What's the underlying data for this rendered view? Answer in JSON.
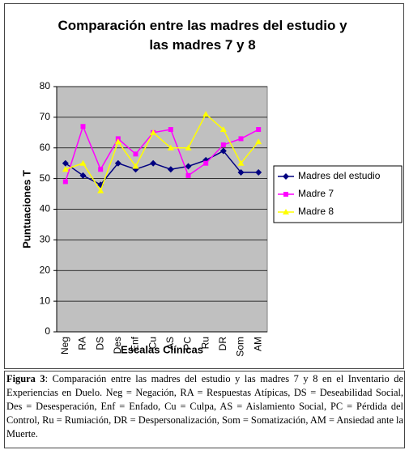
{
  "chart_data": {
    "type": "line",
    "title": "Comparación entre las madres del estudio y las madres 7 y 8",
    "x_label": "Escalas Clínicas",
    "y_label": "Puntuaciones T",
    "categories": [
      "Neg",
      "RA",
      "DS",
      "Des",
      "Enf",
      "Cu",
      "AS",
      "PC",
      "Ru",
      "DR",
      "Som",
      "AM"
    ],
    "series": [
      {
        "name": "Madres del estudio",
        "color": "#000080",
        "marker": "diamond",
        "values": [
          55,
          51,
          48,
          55,
          53,
          55,
          53,
          54,
          56,
          59,
          52,
          52
        ]
      },
      {
        "name": "Madre 7",
        "color": "#ff00ff",
        "marker": "square",
        "values": [
          49,
          67,
          53,
          63,
          58,
          65,
          66,
          51,
          55,
          61,
          63,
          66
        ]
      },
      {
        "name": "Madre 8",
        "color": "#ffff00",
        "marker": "triangle",
        "values": [
          53,
          55,
          46,
          62,
          54,
          65,
          60,
          60,
          71,
          66,
          55,
          62
        ]
      }
    ],
    "ylim": [
      0,
      80
    ],
    "yticks": [
      0,
      10,
      20,
      30,
      40,
      50,
      60,
      70,
      80
    ],
    "grid": true,
    "legend": "right"
  },
  "caption": {
    "label": "Figura 3",
    "text": ": Comparación entre las madres del estudio y las madres 7 y 8 en el Inventario de Experiencias en Duelo.    Neg = Negación, RA = Respuestas Atípicas, DS = Deseabilidad Social, Des = Desesperación,  Enf = Enfado, Cu = Culpa, AS = Aislamiento Social, PC = Pérdida del Control, Ru = Rumiación, DR = Despersonalización, Som = Somatización, AM = Ansiedad ante la Muerte."
  }
}
